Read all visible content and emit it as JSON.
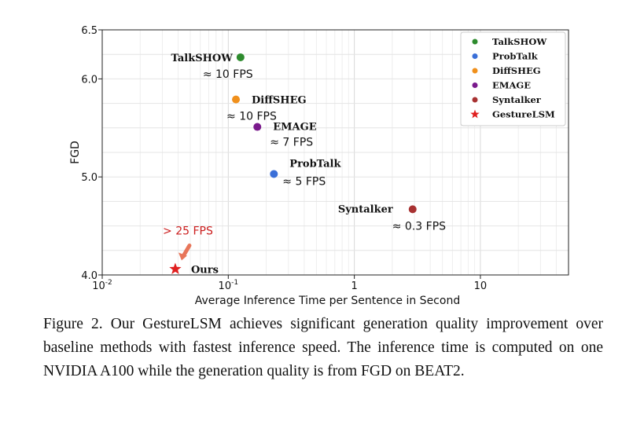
{
  "chart_data": {
    "type": "scatter",
    "xlabel": "Average Inference Time per Sentence in Second",
    "ylabel": "FGD",
    "x_scale": "log",
    "xlim": [
      0.01,
      50
    ],
    "ylim": [
      4.0,
      6.5
    ],
    "x_ticks": [
      {
        "value": 0.01,
        "label": "10",
        "exp": "-2"
      },
      {
        "value": 0.1,
        "label": "10",
        "exp": "-1"
      },
      {
        "value": 1,
        "label": "1",
        "exp": ""
      },
      {
        "value": 10,
        "label": "10",
        "exp": ""
      }
    ],
    "y_ticks": [
      {
        "value": 4.0,
        "label": "4.0"
      },
      {
        "value": 5.0,
        "label": "5.0"
      },
      {
        "value": 6.0,
        "label": "6.0"
      },
      {
        "value": 6.5,
        "label": "6.5"
      }
    ],
    "grid": true,
    "legend_position": "top-right",
    "series": [
      {
        "name": "TalkSHOW",
        "color": "#2e8b2e",
        "marker": "circle",
        "x": 0.125,
        "y": 6.22,
        "label": "TalkSHOW",
        "fps": "≈ 10 FPS"
      },
      {
        "name": "ProbTalk",
        "color": "#3a6fd8",
        "marker": "circle",
        "x": 0.23,
        "y": 5.03,
        "label": "ProbTalk",
        "fps": "≈ 5 FPS"
      },
      {
        "name": "DiffSHEG",
        "color": "#f0901c",
        "marker": "circle",
        "x": 0.115,
        "y": 5.79,
        "label": "DiffSHEG",
        "fps": "≈ 10 FPS"
      },
      {
        "name": "EMAGE",
        "color": "#7a1a8c",
        "marker": "circle",
        "x": 0.17,
        "y": 5.51,
        "label": "EMAGE",
        "fps": "≈ 7 FPS"
      },
      {
        "name": "Syntalker",
        "color": "#a83232",
        "marker": "circle",
        "x": 2.9,
        "y": 4.67,
        "label": "Syntalker",
        "fps": "≈ 0.3 FPS"
      },
      {
        "name": "GestureLSM",
        "color": "#e02020",
        "marker": "star",
        "x": 0.038,
        "y": 4.06,
        "label": "Ours",
        "fps": "> 25 FPS"
      }
    ]
  },
  "caption": {
    "lines": [
      "Figure 2. Our GestureLSM achieves significant generation quality",
      "improvement over baseline methods with fastest inference speed.",
      "The inference time is computed on one NVIDIA A100 while the",
      "generation quality is from FGD on BEAT2."
    ]
  }
}
